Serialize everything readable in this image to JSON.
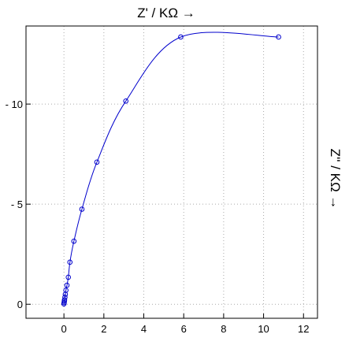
{
  "chart_data": {
    "type": "scatter",
    "title": "",
    "xlabel": "Z' / KΩ →",
    "ylabel": "Z'' / KΩ →",
    "xlim": [
      -1.9,
      12.7
    ],
    "ylim": [
      -0.7,
      13.9
    ],
    "x_ticks": [
      0,
      2,
      4,
      6,
      8,
      10,
      12
    ],
    "y_ticks": [
      0,
      5,
      10
    ],
    "x_tick_labels": [
      "0",
      "2",
      "4",
      "6",
      "8",
      "10",
      "12"
    ],
    "y_tick_labels": [
      "0",
      "- 5",
      "- 10"
    ],
    "grid": true,
    "series": [
      {
        "color": "#0000cc",
        "marker": "circle",
        "line": true,
        "x": [
          0.0,
          0.01,
          0.02,
          0.03,
          0.05,
          0.07,
          0.1,
          0.15,
          0.22,
          0.3,
          0.5,
          0.9,
          1.65,
          3.1,
          5.85,
          10.75
        ],
        "y": [
          0.02,
          0.08,
          0.15,
          0.22,
          0.35,
          0.5,
          0.7,
          0.95,
          1.35,
          2.1,
          3.15,
          4.75,
          7.1,
          10.15,
          13.35,
          13.35
        ]
      }
    ]
  }
}
